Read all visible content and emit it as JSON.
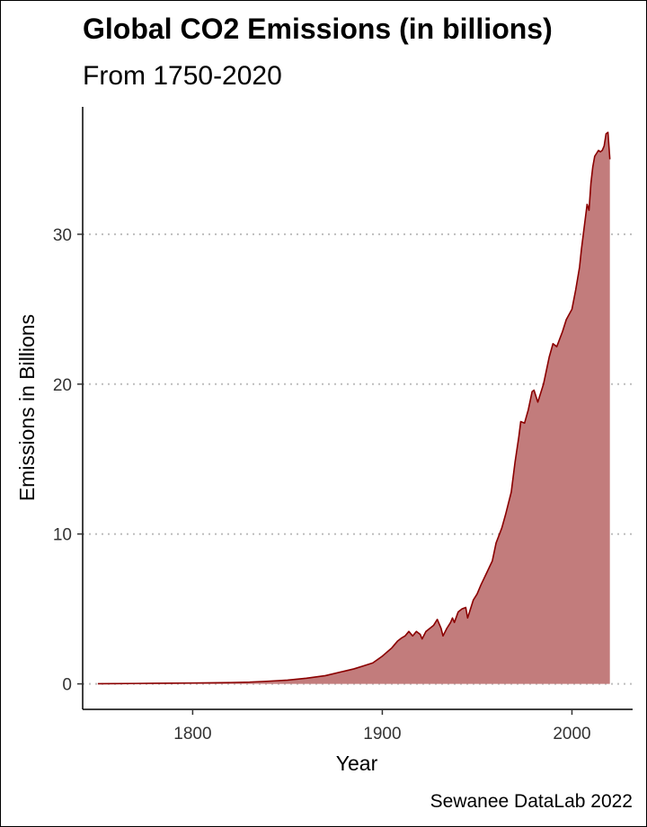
{
  "chart_data": {
    "type": "area",
    "title": "Global CO2 Emissions (in billions)",
    "subtitle": "From 1750-2020",
    "xlabel": "Year",
    "ylabel": "Emissions in Billions",
    "caption": "Sewanee DataLab 2022",
    "xlim": [
      1742,
      2032
    ],
    "ylim": [
      -1.7,
      38.5
    ],
    "xticks": [
      1800,
      1900,
      2000
    ],
    "yticks": [
      0,
      10,
      20,
      30
    ],
    "grid": {
      "x": false,
      "y": true,
      "style": "dotted"
    },
    "legend": "none",
    "fill_color": "#c27c7c",
    "line_color": "#8b0000",
    "series": [
      {
        "x": [
          1750,
          1760,
          1770,
          1780,
          1790,
          1800,
          1810,
          1820,
          1830,
          1840,
          1850,
          1860,
          1870,
          1880,
          1885,
          1890,
          1895,
          1900,
          1905,
          1908,
          1910,
          1912,
          1914,
          1916,
          1918,
          1920,
          1921,
          1923,
          1925,
          1927,
          1929,
          1931,
          1932,
          1934,
          1936,
          1937,
          1938,
          1940,
          1942,
          1944,
          1945,
          1946,
          1948,
          1950,
          1952,
          1955,
          1958,
          1960,
          1963,
          1965,
          1968,
          1970,
          1972,
          1973,
          1975,
          1977,
          1979,
          1980,
          1982,
          1985,
          1988,
          1990,
          1992,
          1995,
          1997,
          2000,
          2002,
          2004,
          2005,
          2006,
          2007,
          2008,
          2009,
          2010,
          2011,
          2012,
          2013,
          2014,
          2015,
          2016,
          2017,
          2018,
          2019,
          2020
        ],
        "y": [
          0.01,
          0.02,
          0.03,
          0.04,
          0.05,
          0.06,
          0.07,
          0.09,
          0.12,
          0.18,
          0.25,
          0.38,
          0.55,
          0.85,
          1.0,
          1.2,
          1.4,
          1.85,
          2.4,
          2.85,
          3.05,
          3.2,
          3.5,
          3.2,
          3.5,
          3.3,
          3.0,
          3.5,
          3.7,
          3.9,
          4.3,
          3.7,
          3.2,
          3.7,
          4.1,
          4.4,
          4.1,
          4.8,
          5.0,
          5.1,
          4.4,
          4.8,
          5.6,
          6.0,
          6.6,
          7.4,
          8.2,
          9.4,
          10.4,
          11.3,
          12.8,
          14.8,
          16.5,
          17.5,
          17.4,
          18.3,
          19.5,
          19.6,
          18.8,
          20.0,
          21.8,
          22.7,
          22.5,
          23.5,
          24.3,
          25.0,
          26.3,
          27.8,
          29.0,
          30.0,
          31.0,
          32.0,
          31.6,
          33.4,
          34.5,
          35.2,
          35.4,
          35.6,
          35.5,
          35.6,
          35.9,
          36.7,
          36.8,
          35.0
        ]
      }
    ]
  }
}
